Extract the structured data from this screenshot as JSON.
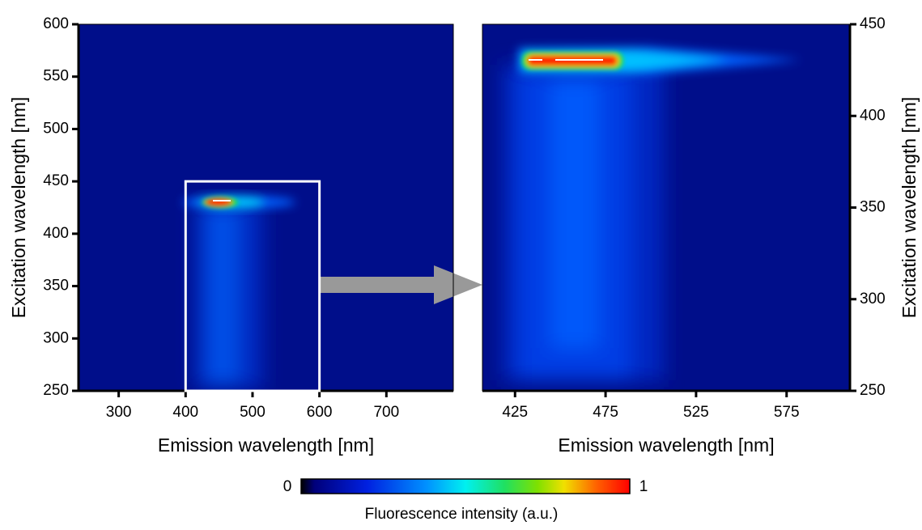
{
  "chart_data": [
    {
      "type": "heatmap",
      "x_label": "Emission wavelength [nm]",
      "y_label": "Excitation wavelength [nm]",
      "xlim": [
        240,
        800
      ],
      "xticks": [
        300,
        400,
        500,
        600,
        700
      ],
      "ylim": [
        250,
        600
      ],
      "yticks": [
        250,
        300,
        350,
        400,
        450,
        500,
        550,
        600
      ],
      "y_axis_side": "left",
      "highlight": {
        "xlim": [
          400,
          600
        ],
        "ylim": [
          250,
          450
        ]
      }
    },
    {
      "type": "heatmap",
      "x_label": "Emission wavelength [nm]",
      "y_label": "Excitation wavelength [nm]",
      "xlim": [
        407,
        610
      ],
      "xticks": [
        425,
        475,
        525,
        575
      ],
      "ylim": [
        250,
        450
      ],
      "yticks": [
        250,
        300,
        350,
        400,
        450
      ],
      "y_axis_side": "right"
    }
  ],
  "colorbar": {
    "label": "Fluorescence intensity (a.u.)",
    "ticks": [
      0,
      1
    ]
  }
}
